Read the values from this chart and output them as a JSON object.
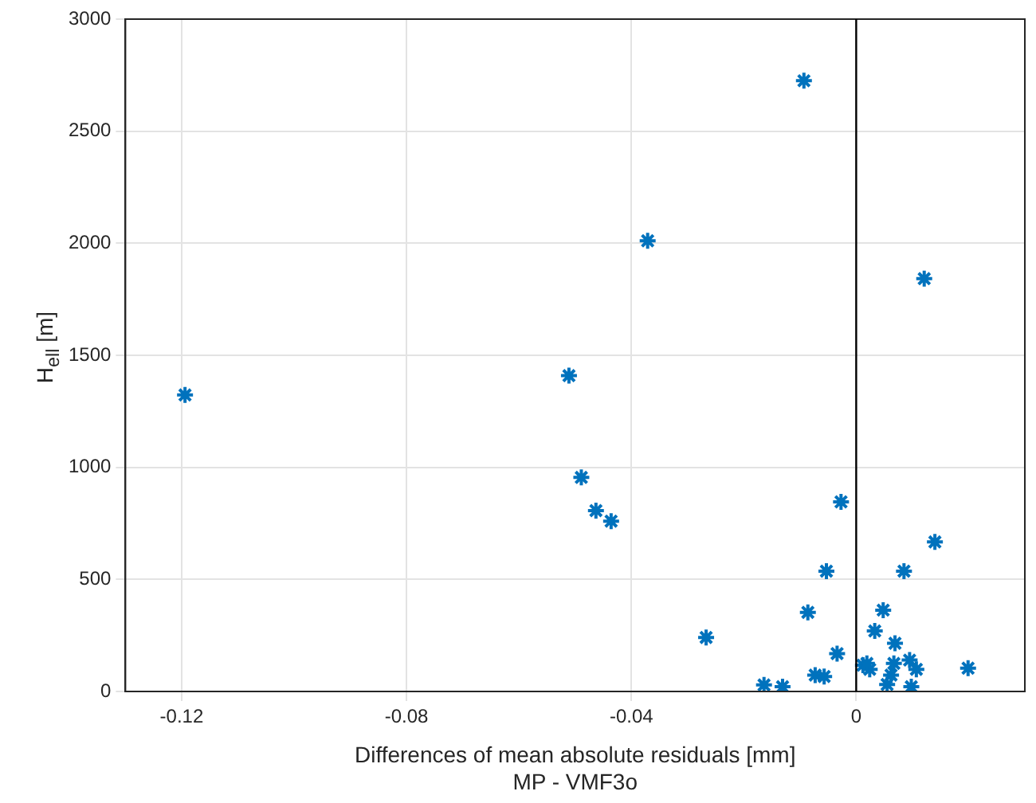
{
  "chart_data": {
    "type": "scatter",
    "xlabel": "Differences of mean absolute residuals [mm]\nMP - VMF3o",
    "ylabel": "H$_{ell}$ [m]",
    "series": [
      {
        "color": "#0072bd",
        "x": [
          -0.1194,
          -0.0093,
          -0.0371,
          0.0121,
          -0.0511,
          -0.0489,
          -0.0463,
          -0.0436,
          -0.0027,
          0.014,
          -0.0053,
          0.0085,
          -0.0267,
          -0.0086,
          0.0048,
          0.0033,
          -0.0034,
          0.0069,
          -0.0164,
          -0.0131,
          -0.0073,
          -0.0057,
          0.0012,
          0.0024,
          0.0067,
          0.0095,
          0.0107,
          0.0062,
          0.0055,
          0.0098,
          0.0199,
          0.0019
        ],
        "values": [
          1323,
          2725,
          2011,
          1842,
          1409,
          955,
          807,
          760,
          846,
          667,
          537,
          537,
          241,
          353,
          363,
          270,
          169,
          215,
          29,
          21,
          73,
          67,
          117,
          99,
          125,
          140,
          99,
          73,
          31,
          21,
          104,
          125
        ]
      }
    ],
    "xlim": [
      -0.13,
      0.03
    ],
    "xticks": [
      -0.12,
      -0.08,
      -0.04,
      0
    ],
    "ylim": [
      0,
      3000
    ],
    "yticks": [
      0,
      500,
      1000,
      1500,
      2000,
      2500,
      3000
    ],
    "grid": true,
    "marker": "cross",
    "ref_lines": [
      {
        "axis": "x",
        "value": 0,
        "color": "#000000"
      }
    ]
  }
}
